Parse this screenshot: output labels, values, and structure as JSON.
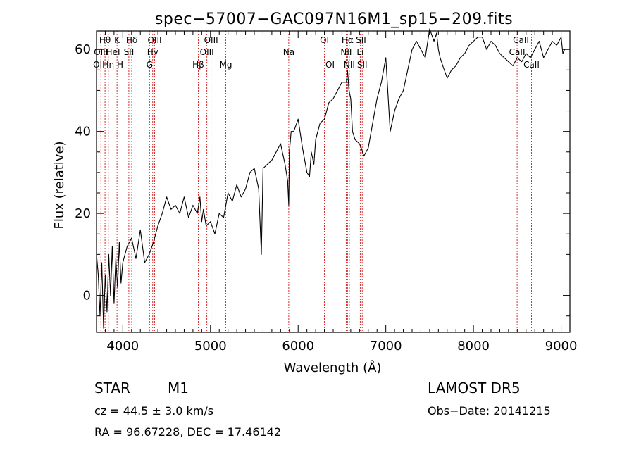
{
  "chart_data": {
    "type": "line",
    "title": "spec−57007−GAC097N16M1_sp15−209.fits",
    "xlabel": "Wavelength (Å)",
    "ylabel": "Flux (relative)",
    "xlim": [
      3700,
      9100
    ],
    "ylim": [
      -9,
      64.5
    ],
    "xticks": [
      {
        "value": 4000,
        "label": "4000"
      },
      {
        "value": 5000,
        "label": "5000"
      },
      {
        "value": 6000,
        "label": "6000"
      },
      {
        "value": 7000,
        "label": "7000"
      },
      {
        "value": 8000,
        "label": "8000"
      },
      {
        "value": 9000,
        "label": "9000"
      }
    ],
    "yticks": [
      {
        "value": 0,
        "label": "0"
      },
      {
        "value": 20,
        "label": "20"
      },
      {
        "value": 40,
        "label": "40"
      },
      {
        "value": 60,
        "label": "60"
      }
    ],
    "series": [
      {
        "color": "#000000",
        "x": [
          3700,
          3720,
          3740,
          3760,
          3780,
          3800,
          3820,
          3840,
          3860,
          3880,
          3900,
          3920,
          3940,
          3960,
          3980,
          4000,
          4050,
          4100,
          4150,
          4200,
          4250,
          4300,
          4350,
          4400,
          4450,
          4500,
          4550,
          4600,
          4650,
          4700,
          4750,
          4800,
          4850,
          4880,
          4900,
          4920,
          4950,
          5000,
          5050,
          5100,
          5150,
          5200,
          5250,
          5300,
          5350,
          5400,
          5450,
          5500,
          5550,
          5580,
          5600,
          5650,
          5700,
          5750,
          5800,
          5850,
          5880,
          5893,
          5900,
          5920,
          5950,
          6000,
          6050,
          6100,
          6130,
          6150,
          6180,
          6200,
          6250,
          6300,
          6350,
          6400,
          6450,
          6500,
          6550,
          6563,
          6580,
          6600,
          6620,
          6650,
          6700,
          6720,
          6750,
          6800,
          6850,
          6900,
          6950,
          7000,
          7050,
          7100,
          7150,
          7200,
          7250,
          7300,
          7350,
          7400,
          7450,
          7500,
          7550,
          7580,
          7600,
          7620,
          7650,
          7700,
          7750,
          7800,
          7850,
          7900,
          7950,
          8000,
          8050,
          8100,
          8150,
          8200,
          8250,
          8300,
          8350,
          8400,
          8450,
          8500,
          8550,
          8600,
          8650,
          8700,
          8750,
          8800,
          8850,
          8900,
          8950,
          9000,
          9020,
          9040
        ],
        "y": [
          10,
          5,
          -5,
          8,
          -8,
          5,
          -4,
          10,
          0,
          12,
          -2,
          9,
          2,
          13,
          3,
          8,
          12,
          14,
          9,
          16,
          8,
          10,
          13,
          17,
          20,
          24,
          21,
          22,
          20,
          24,
          19,
          22,
          20,
          24,
          18,
          21,
          17,
          18,
          15,
          20,
          19,
          25,
          23,
          27,
          24,
          26,
          30,
          31,
          26,
          10,
          31,
          32,
          33,
          35,
          37,
          32,
          28,
          22,
          35,
          40,
          40,
          43,
          36,
          30,
          29,
          35,
          32,
          38,
          42,
          43,
          47,
          48,
          50,
          52,
          52,
          55,
          50,
          48,
          40,
          38,
          37,
          36,
          34,
          36,
          42,
          48,
          52,
          58,
          40,
          45,
          48,
          50,
          55,
          60,
          62,
          60,
          58,
          65,
          62,
          64,
          60,
          58,
          56,
          53,
          55,
          56,
          58,
          59,
          61,
          62,
          63,
          63,
          60,
          62,
          61,
          59,
          58,
          57,
          56,
          58,
          57,
          59,
          58,
          60,
          62,
          58,
          60,
          62,
          61,
          63,
          59,
          60
        ]
      }
    ],
    "line_labels": [
      {
        "text": "Hθ",
        "x": 3797,
        "row": 0
      },
      {
        "text": "K",
        "x": 3934,
        "row": 0
      },
      {
        "text": "Hδ",
        "x": 4102,
        "row": 0
      },
      {
        "text": "OIII",
        "x": 4363,
        "row": 0
      },
      {
        "text": "OIII",
        "x": 5007,
        "row": 0
      },
      {
        "text": "OI",
        "x": 6300,
        "row": 0
      },
      {
        "text": "Hα",
        "x": 6563,
        "row": 0
      },
      {
        "text": "SII",
        "x": 6717,
        "row": 0
      },
      {
        "text": "CaII",
        "x": 8542,
        "row": 0
      },
      {
        "text": "OIII",
        "x": 3750,
        "row": 1
      },
      {
        "text": "HeI",
        "x": 3889,
        "row": 1
      },
      {
        "text": "SII",
        "x": 4069,
        "row": 1
      },
      {
        "text": "Hγ",
        "x": 4341,
        "row": 1
      },
      {
        "text": "OIII",
        "x": 4959,
        "row": 1
      },
      {
        "text": "Na",
        "x": 5893,
        "row": 1
      },
      {
        "text": "NII",
        "x": 6548,
        "row": 1
      },
      {
        "text": "Li",
        "x": 6708,
        "row": 1
      },
      {
        "text": "CaII",
        "x": 8498,
        "row": 1
      },
      {
        "text": "OII",
        "x": 3727,
        "row": 2
      },
      {
        "text": "Hη",
        "x": 3835,
        "row": 2
      },
      {
        "text": "H",
        "x": 3969,
        "row": 2
      },
      {
        "text": "G",
        "x": 4305,
        "row": 2
      },
      {
        "text": "Hβ",
        "x": 4861,
        "row": 2
      },
      {
        "text": "Mg",
        "x": 5175,
        "row": 2
      },
      {
        "text": "OI",
        "x": 6364,
        "row": 2
      },
      {
        "text": "NII",
        "x": 6584,
        "row": 2
      },
      {
        "text": "SII",
        "x": 6731,
        "row": 2
      },
      {
        "text": "CaII",
        "x": 8662,
        "row": 2
      }
    ],
    "line_markers": [
      3727,
      3750,
      3797,
      3835,
      3889,
      3934,
      3969,
      4069,
      4102,
      4305,
      4341,
      4363,
      4861,
      4959,
      5007,
      5175,
      5893,
      6300,
      6364,
      6548,
      6563,
      6584,
      6708,
      6717,
      6731,
      8498,
      8542,
      8662
    ],
    "line_marker_color": "#cc0000"
  },
  "info": {
    "object_class": "STAR",
    "subclass": "M1",
    "survey": "LAMOST DR5",
    "cz": "cz = 44.5 ± 3.0 km/s",
    "obs_date": "Obs−Date: 20141215",
    "coords": "RA =  96.67228, DEC =  17.46142"
  }
}
